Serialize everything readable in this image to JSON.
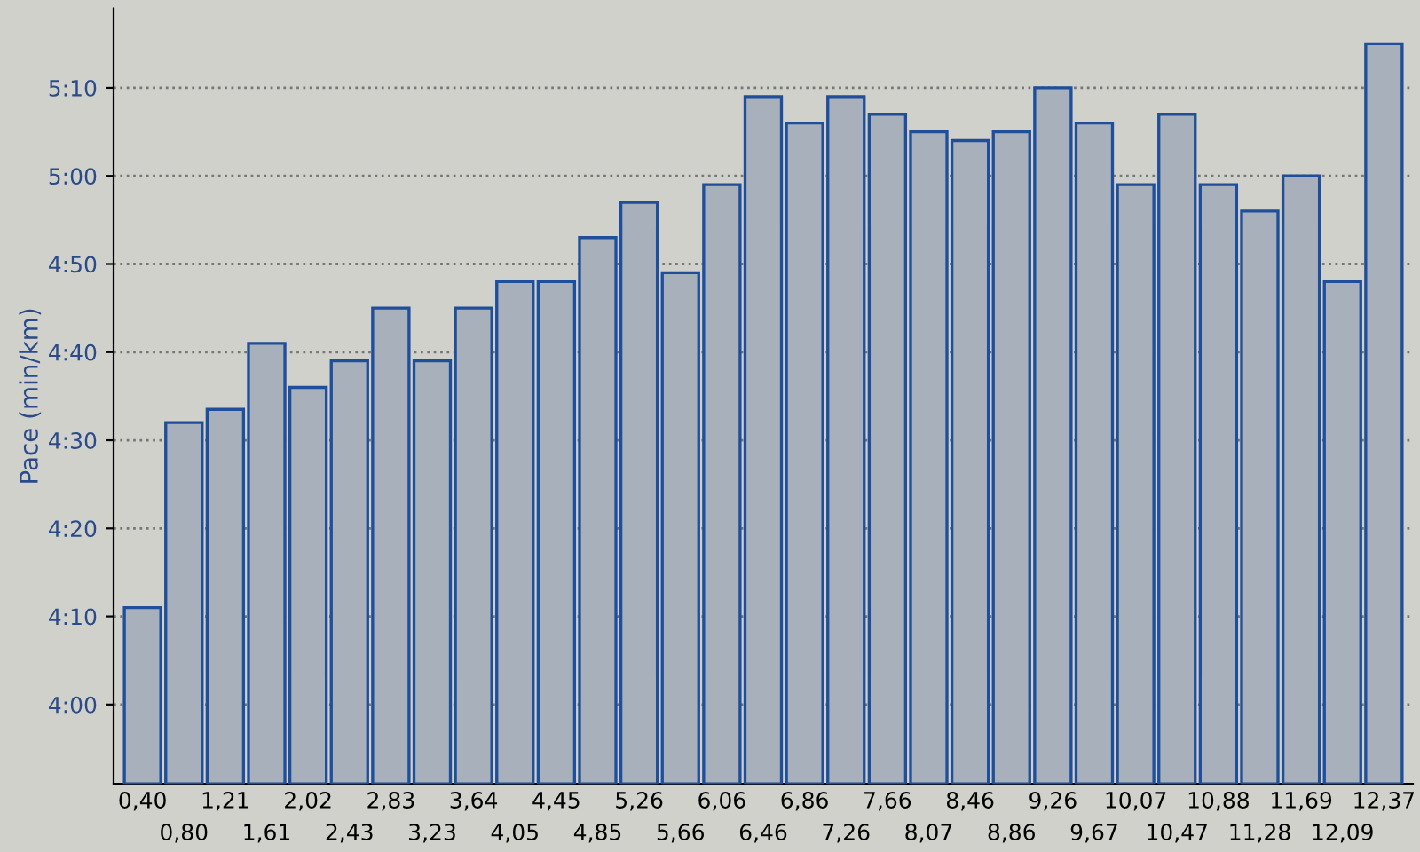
{
  "chart_data": {
    "type": "bar",
    "ylabel": "Pace (min/km)",
    "categories": [
      "0,40",
      "0,80",
      "1,21",
      "1,61",
      "2,02",
      "2,43",
      "2,83",
      "3,23",
      "3,64",
      "4,05",
      "4,45",
      "4,85",
      "5,26",
      "5,66",
      "6,06",
      "6,46",
      "6,86",
      "7,26",
      "7,66",
      "8,07",
      "8,46",
      "8,86",
      "9,26",
      "9,67",
      "10,07",
      "10,47",
      "10,88",
      "11,28",
      "11,69",
      "12,09",
      "12,37"
    ],
    "values": [
      251,
      272,
      273.5,
      281,
      276,
      279,
      285,
      279,
      285,
      288,
      288,
      293,
      297,
      289,
      299,
      309,
      306,
      309,
      307,
      305,
      304,
      305,
      310,
      306,
      299,
      307,
      299,
      296,
      300,
      288,
      315
    ],
    "color": "#a7b0bb",
    "ylim": [
      231,
      319
    ],
    "yticks": [
      {
        "value": 240,
        "label": "4:00"
      },
      {
        "value": 250,
        "label": "4:10"
      },
      {
        "value": 260,
        "label": "4:20"
      },
      {
        "value": 270,
        "label": "4:30"
      },
      {
        "value": 280,
        "label": "4:40"
      },
      {
        "value": 290,
        "label": "4:50"
      },
      {
        "value": 300,
        "label": "5:00"
      },
      {
        "value": 310,
        "label": "5:10"
      }
    ],
    "grid": "y",
    "legend": false
  }
}
